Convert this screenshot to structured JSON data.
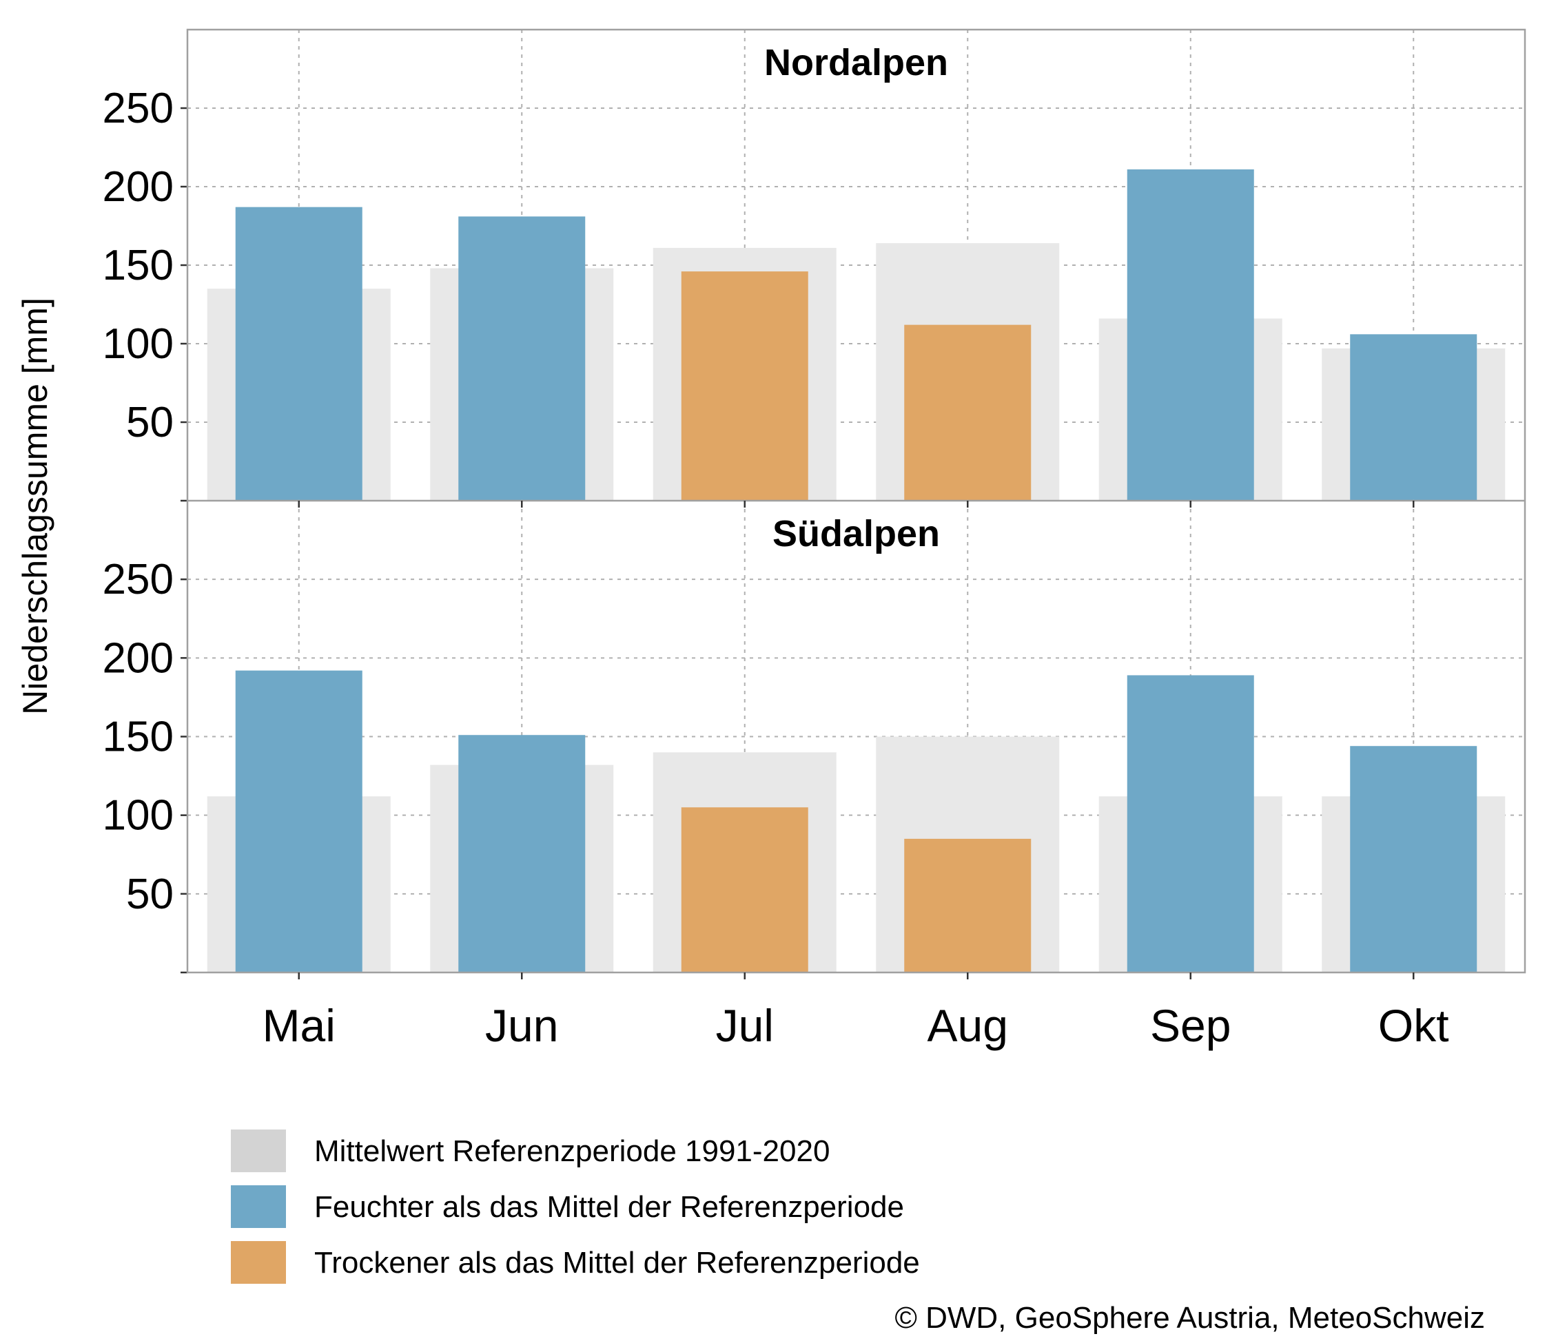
{
  "chart_data": [
    {
      "type": "bar",
      "title": "Nordalpen",
      "ylabel": "Niederschlagssumme [mm]",
      "xlabel": "",
      "categories": [
        "Mai",
        "Jun",
        "Jul",
        "Aug",
        "Sep",
        "Okt"
      ],
      "ylim": [
        0,
        300
      ],
      "yticks": [
        50,
        100,
        150,
        200,
        250
      ],
      "grid": true,
      "series": [
        {
          "name": "Mittelwert Referenzperiode 1991-2020",
          "values": [
            135,
            148,
            161,
            164,
            116,
            97
          ]
        },
        {
          "name": "Niederschlagssumme",
          "values": [
            187,
            181,
            146,
            112,
            211,
            106
          ]
        }
      ],
      "bar_category": [
        "wetter",
        "wetter",
        "drier",
        "drier",
        "wetter",
        "wetter"
      ]
    },
    {
      "type": "bar",
      "title": "Südalpen",
      "ylabel": "Niederschlagssumme [mm]",
      "xlabel": "",
      "categories": [
        "Mai",
        "Jun",
        "Jul",
        "Aug",
        "Sep",
        "Okt"
      ],
      "ylim": [
        0,
        300
      ],
      "yticks": [
        50,
        100,
        150,
        200,
        250
      ],
      "grid": true,
      "series": [
        {
          "name": "Mittelwert Referenzperiode 1991-2020",
          "values": [
            112,
            132,
            140,
            150,
            112,
            112
          ]
        },
        {
          "name": "Niederschlagssumme",
          "values": [
            192,
            151,
            105,
            85,
            189,
            144
          ]
        }
      ],
      "bar_category": [
        "wetter",
        "wetter",
        "drier",
        "drier",
        "wetter",
        "wetter"
      ]
    }
  ],
  "legend": {
    "position": "bottom-left",
    "items": [
      {
        "key": "reference",
        "label": "Mittelwert Referenzperiode 1991-2020",
        "color": "#d3d3d3"
      },
      {
        "key": "wetter",
        "label": "Feuchter als das Mittel der Referenzperiode",
        "color": "#6fa8c7"
      },
      {
        "key": "drier",
        "label": "Trockener als das Mittel der Referenzperiode",
        "color": "#e0a665"
      }
    ]
  },
  "colors": {
    "reference_bar": "#e8e8e8",
    "wetter": "#6fa8c7",
    "drier": "#e0a665",
    "grid": "#b0b0b0",
    "frame": "#a0a0a0"
  },
  "credit": "© DWD, GeoSphere Austria, MeteoSchweiz"
}
